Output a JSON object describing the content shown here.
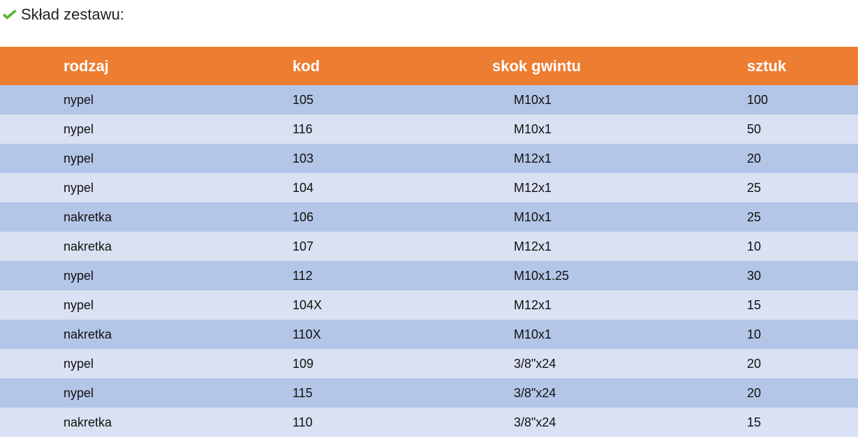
{
  "heading": {
    "icon": "checkmark-icon",
    "text": "Skład zestawu:"
  },
  "colors": {
    "header": "#ed7d31",
    "row_dark": "#b4c6e7",
    "row_light": "#d9e1f2",
    "check": "#5cb531"
  },
  "table": {
    "columns": [
      "rodzaj",
      "kod",
      "skok gwintu",
      "sztuk"
    ],
    "rows": [
      [
        "nypel",
        "105",
        "M10x1",
        "100"
      ],
      [
        "nypel",
        "116",
        "M10x1",
        "50"
      ],
      [
        "nypel",
        "103",
        "M12x1",
        "20"
      ],
      [
        "nypel",
        "104",
        "M12x1",
        "25"
      ],
      [
        "nakretka",
        "106",
        "M10x1",
        "25"
      ],
      [
        "nakretka",
        "107",
        "M12x1",
        "10"
      ],
      [
        "nypel",
        "112",
        "M10x1.25",
        "30"
      ],
      [
        "nypel",
        "104X",
        "M12x1",
        "15"
      ],
      [
        "nakretka",
        "110X",
        "M10x1",
        "10"
      ],
      [
        "nypel",
        "109",
        "3/8\"x24",
        "20"
      ],
      [
        "nypel",
        "115",
        "3/8\"x24",
        "20"
      ],
      [
        "nakretka",
        "110",
        "3/8\"x24",
        "15"
      ]
    ]
  }
}
